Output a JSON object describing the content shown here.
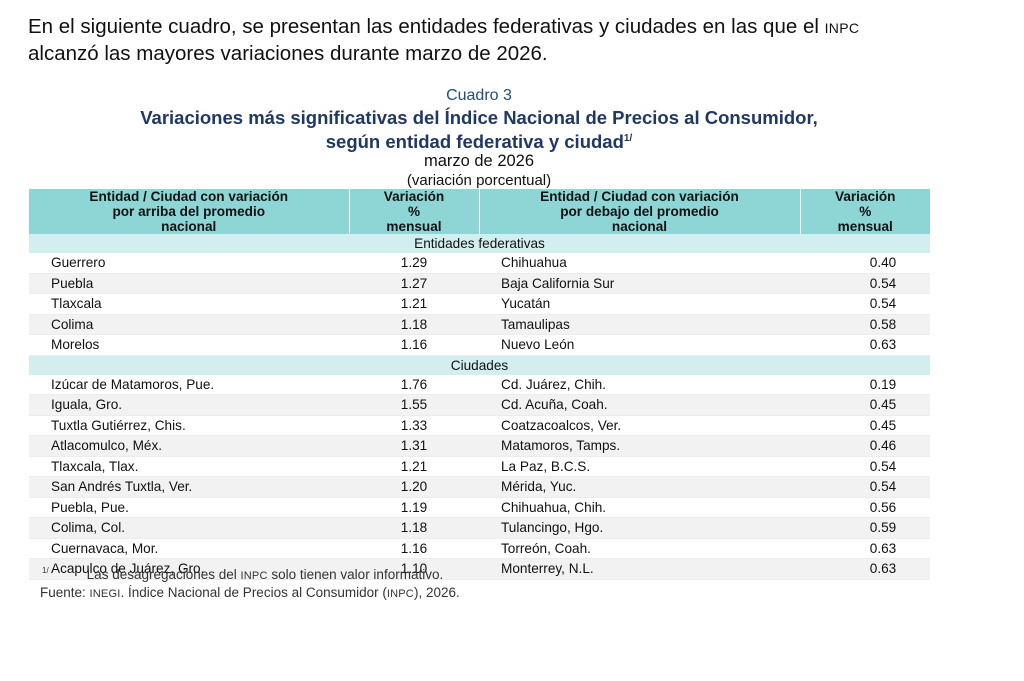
{
  "intro": {
    "text_before": "En el siguiente cuadro, se presentan las entidades federativas y ciudades en las que el ",
    "abbrev": "INPC",
    "text_after": "alcanzó las mayores variaciones durante marzo de 2026."
  },
  "caption": {
    "number": "Cuadro 3",
    "title_line1": "Variaciones más significativas del Índice Nacional de Precios al Consumidor,",
    "title_line2": "según entidad federativa y ciudad",
    "title_note_mark": "1/",
    "date": "marzo de 2026",
    "unit": "(variación porcentual)"
  },
  "table": {
    "headers": [
      "Entidad / Ciudad con variación por arriba del promedio nacional",
      "Variación % mensual",
      "Entidad / Ciudad con variación por debajo del promedio nacional",
      "Variación % mensual"
    ],
    "sections": [
      {
        "label": "Entidades federativas",
        "rows": [
          [
            "Guerrero",
            "1.29",
            "Chihuahua",
            "0.40"
          ],
          [
            "Puebla",
            "1.27",
            "Baja California Sur",
            "0.54"
          ],
          [
            "Tlaxcala",
            "1.21",
            "Yucatán",
            "0.54"
          ],
          [
            "Colima",
            "1.18",
            "Tamaulipas",
            "0.58"
          ],
          [
            "Morelos",
            "1.16",
            "Nuevo León",
            "0.63"
          ]
        ]
      },
      {
        "label": "Ciudades",
        "rows": [
          [
            "Izúcar de Matamoros, Pue.",
            "1.76",
            "Cd. Juárez, Chih.",
            "0.19"
          ],
          [
            "Iguala, Gro.",
            "1.55",
            "Cd. Acuña, Coah.",
            "0.45"
          ],
          [
            "Tuxtla Gutiérrez, Chis.",
            "1.33",
            "Coatzacoalcos, Ver.",
            "0.45"
          ],
          [
            "Atlacomulco, Méx.",
            "1.31",
            "Matamoros, Tamps.",
            "0.46"
          ],
          [
            "Tlaxcala, Tlax.",
            "1.21",
            "La Paz, B.C.S.",
            "0.54"
          ],
          [
            "San Andrés Tuxtla, Ver.",
            "1.20",
            "Mérida, Yuc.",
            "0.54"
          ],
          [
            "Puebla, Pue.",
            "1.19",
            "Chihuahua, Chih.",
            "0.56"
          ],
          [
            "Colima, Col.",
            "1.18",
            "Tulancingo, Hgo.",
            "0.59"
          ],
          [
            "Cuernavaca, Mor.",
            "1.16",
            "Torreón, Coah.",
            "0.63"
          ],
          [
            "Acapulco de Juárez, Gro.",
            "1.10",
            "Monterrey, N.L.",
            "0.63"
          ]
        ]
      }
    ]
  },
  "footnote": {
    "mark": "1/",
    "text_before": "Las desagregaciones del ",
    "abbrev": "INPC",
    "text_after": " solo tienen valor informativo."
  },
  "source": {
    "label": "Fuente: ",
    "org": "INEGI",
    "text_before": ". Índice Nacional de Precios al Consumidor (",
    "abbrev": "INPC",
    "text_after": "), 2026."
  },
  "colors": {
    "header_bg": "#8ed6d6",
    "section_bg": "#d2eeee",
    "title_color": "#1f3864"
  }
}
